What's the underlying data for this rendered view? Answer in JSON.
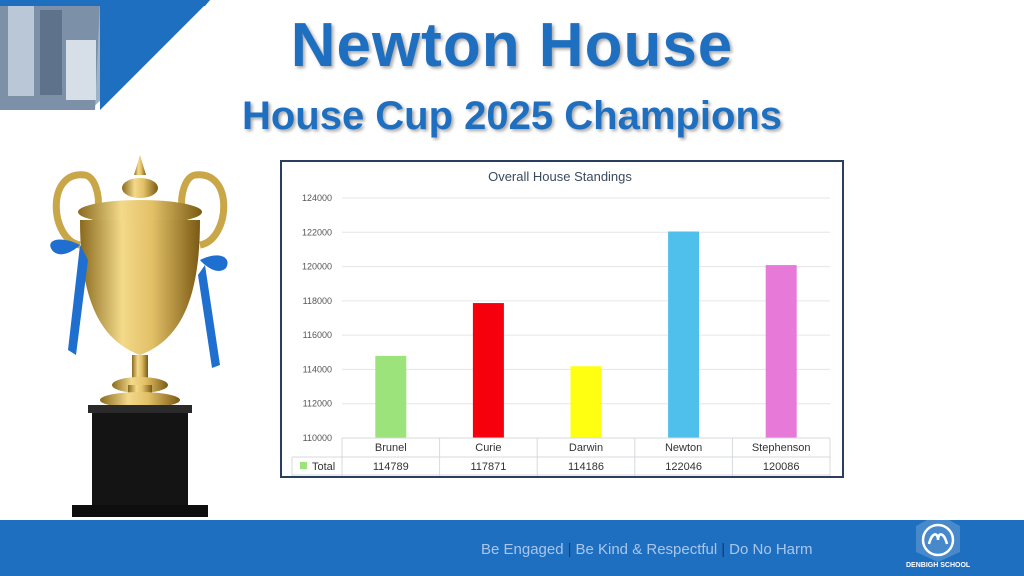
{
  "header": {
    "title": "Newton House",
    "subtitle": "House Cup 2025 Champions"
  },
  "colors": {
    "brand_blue": "#1f6fc0",
    "footer_text": "#a9c6ea"
  },
  "chart_data": {
    "type": "bar",
    "title": "Overall House Standings",
    "categories": [
      "Brunel",
      "Curie",
      "Darwin",
      "Newton",
      "Stephenson"
    ],
    "series": [
      {
        "name": "Total",
        "values": [
          114789,
          117871,
          114186,
          122046,
          120086
        ]
      }
    ],
    "bar_colors": [
      "#9be37a",
      "#f5000c",
      "#ffff12",
      "#4fc0ec",
      "#e779d8"
    ],
    "legend_color": "#9be37a",
    "y_ticks": [
      "124000",
      "122000",
      "120000",
      "118000",
      "116000",
      "114000",
      "112000",
      "110000"
    ],
    "ylim": [
      110000,
      124000
    ],
    "grid": true,
    "data_table": true
  },
  "footer": {
    "tag1": "Be Engaged",
    "tag2": "Be Kind & Respectful",
    "tag3": "Do No Harm",
    "separator": "|",
    "logo_text": "DENBIGH SCHOOL"
  }
}
